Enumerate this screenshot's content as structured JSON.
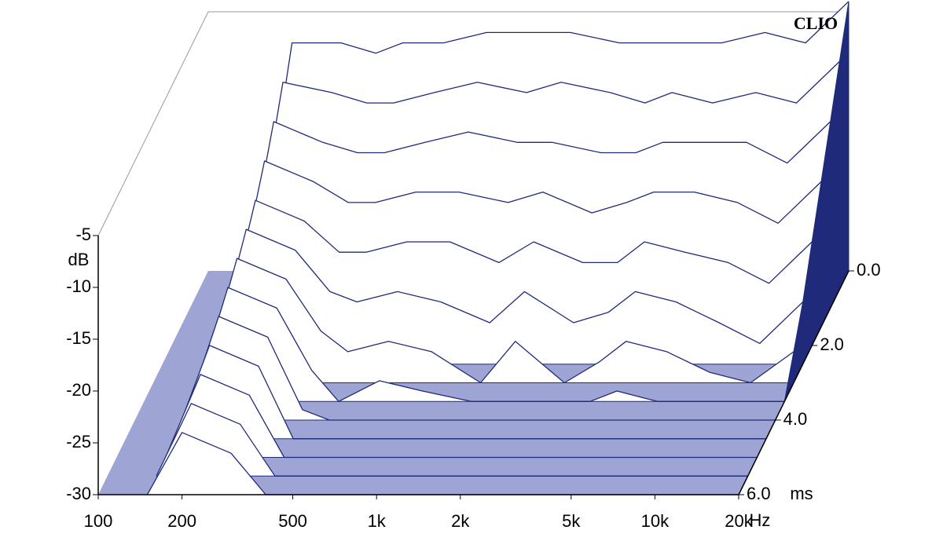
{
  "chart_data": {
    "type": "waterfall",
    "brand": "CLIO",
    "y_label": "dB",
    "x_label": "Hz",
    "z_label": "ms",
    "color": "#1f2a7a",
    "floor_color": "#9ea4d4",
    "log_x": true,
    "xlim": [
      100,
      20000
    ],
    "xticks": [
      100,
      200,
      500,
      {
        "value": 1000,
        "label": "1k"
      },
      {
        "value": 2000,
        "label": "2k"
      },
      {
        "value": 5000,
        "label": "5k"
      },
      {
        "value": 10000,
        "label": "10k"
      },
      {
        "value": 20000,
        "label": "20k"
      }
    ],
    "ylim": [
      -30,
      -5
    ],
    "yticks": [
      -5,
      -10,
      -15,
      -20,
      -25,
      -30
    ],
    "zlim": [
      0,
      6
    ],
    "zticks": [
      {
        "value": 0,
        "label": "0.0"
      },
      {
        "value": 2,
        "label": "2.0"
      },
      {
        "value": 4,
        "label": "4.0"
      },
      {
        "value": 6,
        "label": "6.0"
      }
    ],
    "x": [
      150,
      200,
      300,
      400,
      500,
      700,
      1000,
      1500,
      2000,
      3000,
      4000,
      5000,
      7000,
      10000,
      14000,
      20000
    ],
    "z": [
      0,
      0.5,
      1,
      1.5,
      2,
      2.5,
      3,
      3.5,
      4,
      4.5,
      5,
      5.5,
      6
    ],
    "series": [
      {
        "values": [
          -30,
          -8,
          -8,
          -9,
          -8,
          -8,
          -7,
          -7,
          -7,
          -8,
          -8,
          -8,
          -8,
          -7,
          -8,
          -4
        ]
      },
      {
        "values": [
          -30,
          -10,
          -11,
          -12,
          -12,
          -11,
          -10,
          -11,
          -10,
          -11,
          -12,
          -11,
          -12,
          -11,
          -12,
          -8
        ]
      },
      {
        "values": [
          -30,
          -12,
          -14,
          -15,
          -15,
          -14,
          -13,
          -14,
          -14,
          -15,
          -15,
          -14,
          -14,
          -14,
          -16,
          -12
        ]
      },
      {
        "values": [
          -30,
          -14,
          -16,
          -18,
          -18,
          -17,
          -17,
          -18,
          -17,
          -19,
          -18,
          -17,
          -17,
          -18,
          -20,
          -16
        ]
      },
      {
        "values": [
          -30,
          -16,
          -18,
          -21,
          -21,
          -20,
          -20,
          -22,
          -20,
          -22,
          -22,
          -20,
          -21,
          -22,
          -24,
          -20
        ]
      },
      {
        "values": [
          -30,
          -17,
          -19,
          -23,
          -24,
          -23,
          -24,
          -26,
          -23,
          -26,
          -25,
          -23,
          -24,
          -26,
          -28,
          -24
        ]
      },
      {
        "values": [
          -30,
          -18,
          -20,
          -25,
          -27,
          -26,
          -27,
          -30,
          -26,
          -30,
          -28,
          -26,
          -27,
          -29,
          -30,
          -27
        ]
      },
      {
        "values": [
          -30,
          -19,
          -21,
          -27,
          -30,
          -28,
          -29,
          -30,
          -30,
          -30,
          -30,
          -29,
          -30,
          -30,
          -30,
          -30
        ]
      },
      {
        "values": [
          -30,
          -20,
          -22,
          -29,
          -30,
          -30,
          -30,
          -30,
          -30,
          -30,
          -30,
          -30,
          -30,
          -30,
          -30,
          -30
        ]
      },
      {
        "values": [
          -30,
          -21,
          -23,
          -30,
          -30,
          -30,
          -30,
          -30,
          -30,
          -30,
          -30,
          -30,
          -30,
          -30,
          -30,
          -30
        ]
      },
      {
        "values": [
          -30,
          -22,
          -24,
          -30,
          -30,
          -30,
          -30,
          -30,
          -30,
          -30,
          -30,
          -30,
          -30,
          -30,
          -30,
          -30
        ]
      },
      {
        "values": [
          -30,
          -23,
          -25,
          -30,
          -30,
          -30,
          -30,
          -30,
          -30,
          -30,
          -30,
          -30,
          -30,
          -30,
          -30,
          -30
        ]
      },
      {
        "values": [
          -30,
          -24,
          -26,
          -30,
          -30,
          -30,
          -30,
          -30,
          -30,
          -30,
          -30,
          -30,
          -30,
          -30,
          -30,
          -30
        ]
      }
    ]
  }
}
